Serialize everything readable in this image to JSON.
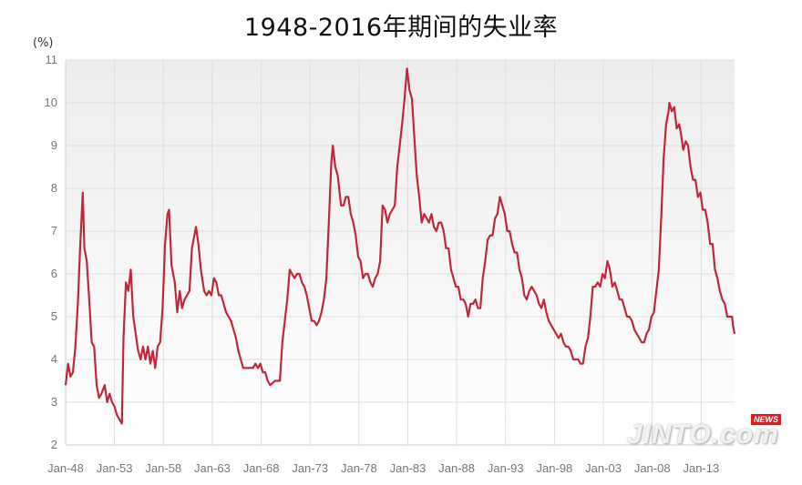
{
  "title": "1948-2016年期间的失业率",
  "unit": "(%)",
  "watermark": {
    "text": "JINTO.com",
    "badge": "NEWS"
  },
  "colors": {
    "line": "#c0283a",
    "grid": "#dedede",
    "plot_top": "#ececec",
    "plot_bottom": "#ffffff"
  },
  "chart_data": {
    "type": "line",
    "title": "1948-2016年期间的失业率",
    "ylabel": "(%)",
    "ylim": [
      2,
      11
    ],
    "yticks": [
      2,
      3,
      4,
      5,
      6,
      7,
      8,
      9,
      10,
      11
    ],
    "xlim": [
      "Jan-48",
      "Jun-16"
    ],
    "categories": [
      "Jan-48",
      "Jan-53",
      "Jan-58",
      "Jan-63",
      "Jan-68",
      "Jan-73",
      "Jan-78",
      "Jan-83",
      "Jan-88",
      "Jan-93",
      "Jan-98",
      "Jan-03",
      "Jan-08",
      "Jan-13"
    ],
    "grid": true,
    "legend": "none",
    "series": [
      {
        "points": [
          [
            "Jan-48",
            3.4
          ],
          [
            "Apr-48",
            3.9
          ],
          [
            "Jul-48",
            3.6
          ],
          [
            "Oct-48",
            3.7
          ],
          [
            "Jan-49",
            4.3
          ],
          [
            "Apr-49",
            5.3
          ],
          [
            "Jul-49",
            6.7
          ],
          [
            "Oct-49",
            7.9
          ],
          [
            "Dec-49",
            6.6
          ],
          [
            "Mar-50",
            6.3
          ],
          [
            "Jun-50",
            5.4
          ],
          [
            "Sep-50",
            4.4
          ],
          [
            "Dec-50",
            4.3
          ],
          [
            "Mar-51",
            3.4
          ],
          [
            "Jun-51",
            3.1
          ],
          [
            "Sep-51",
            3.2
          ],
          [
            "Jan-52",
            3.4
          ],
          [
            "Apr-52",
            3.0
          ],
          [
            "Jul-52",
            3.2
          ],
          [
            "Oct-52",
            3.0
          ],
          [
            "Jan-53",
            2.9
          ],
          [
            "Apr-53",
            2.7
          ],
          [
            "Jul-53",
            2.6
          ],
          [
            "Oct-53",
            2.5
          ],
          [
            "Dec-53",
            4.5
          ],
          [
            "Mar-54",
            5.8
          ],
          [
            "Jun-54",
            5.6
          ],
          [
            "Sep-54",
            6.1
          ],
          [
            "Dec-54",
            5.0
          ],
          [
            "Mar-55",
            4.6
          ],
          [
            "Jun-55",
            4.2
          ],
          [
            "Sep-55",
            4.0
          ],
          [
            "Dec-55",
            4.3
          ],
          [
            "Mar-56",
            4.0
          ],
          [
            "Jun-56",
            4.3
          ],
          [
            "Sep-56",
            3.9
          ],
          [
            "Dec-56",
            4.2
          ],
          [
            "Mar-57",
            3.8
          ],
          [
            "Jun-57",
            4.3
          ],
          [
            "Sep-57",
            4.4
          ],
          [
            "Dec-57",
            5.2
          ],
          [
            "Mar-58",
            6.7
          ],
          [
            "Jun-58",
            7.4
          ],
          [
            "Aug-58",
            7.5
          ],
          [
            "Nov-58",
            6.2
          ],
          [
            "Mar-59",
            5.8
          ],
          [
            "Jun-59",
            5.1
          ],
          [
            "Sep-59",
            5.6
          ],
          [
            "Dec-59",
            5.2
          ],
          [
            "Mar-60",
            5.4
          ],
          [
            "Jun-60",
            5.5
          ],
          [
            "Sep-60",
            5.6
          ],
          [
            "Dec-60",
            6.6
          ],
          [
            "Mar-61",
            6.9
          ],
          [
            "May-61",
            7.1
          ],
          [
            "Aug-61",
            6.7
          ],
          [
            "Nov-61",
            6.1
          ],
          [
            "Mar-62",
            5.6
          ],
          [
            "Jun-62",
            5.5
          ],
          [
            "Sep-62",
            5.6
          ],
          [
            "Dec-62",
            5.5
          ],
          [
            "Mar-63",
            5.9
          ],
          [
            "Jun-63",
            5.8
          ],
          [
            "Sep-63",
            5.5
          ],
          [
            "Dec-63",
            5.5
          ],
          [
            "Mar-64",
            5.3
          ],
          [
            "Jun-64",
            5.1
          ],
          [
            "Sep-64",
            5.0
          ],
          [
            "Dec-64",
            4.9
          ],
          [
            "Mar-65",
            4.7
          ],
          [
            "Jun-65",
            4.5
          ],
          [
            "Sep-65",
            4.2
          ],
          [
            "Dec-65",
            4.0
          ],
          [
            "Mar-66",
            3.8
          ],
          [
            "Jun-66",
            3.8
          ],
          [
            "Sep-66",
            3.8
          ],
          [
            "Dec-66",
            3.8
          ],
          [
            "Mar-67",
            3.8
          ],
          [
            "Jun-67",
            3.9
          ],
          [
            "Sep-67",
            3.8
          ],
          [
            "Dec-67",
            3.9
          ],
          [
            "Mar-68",
            3.7
          ],
          [
            "Jun-68",
            3.7
          ],
          [
            "Sep-68",
            3.5
          ],
          [
            "Dec-68",
            3.4
          ],
          [
            "Jun-69",
            3.5
          ],
          [
            "Dec-69",
            3.5
          ],
          [
            "Mar-70",
            4.4
          ],
          [
            "Jun-70",
            4.9
          ],
          [
            "Sep-70",
            5.4
          ],
          [
            "Dec-70",
            6.1
          ],
          [
            "Mar-71",
            6.0
          ],
          [
            "Jun-71",
            5.9
          ],
          [
            "Sep-71",
            6.0
          ],
          [
            "Dec-71",
            6.0
          ],
          [
            "Mar-72",
            5.8
          ],
          [
            "Jun-72",
            5.7
          ],
          [
            "Sep-72",
            5.5
          ],
          [
            "Dec-72",
            5.2
          ],
          [
            "Mar-73",
            4.9
          ],
          [
            "Jun-73",
            4.9
          ],
          [
            "Sep-73",
            4.8
          ],
          [
            "Dec-73",
            4.9
          ],
          [
            "Mar-74",
            5.1
          ],
          [
            "Jun-74",
            5.4
          ],
          [
            "Sep-74",
            5.9
          ],
          [
            "Dec-74",
            7.2
          ],
          [
            "Mar-75",
            8.6
          ],
          [
            "May-75",
            9.0
          ],
          [
            "Aug-75",
            8.5
          ],
          [
            "Nov-75",
            8.3
          ],
          [
            "Mar-76",
            7.6
          ],
          [
            "Jun-76",
            7.6
          ],
          [
            "Sep-76",
            7.8
          ],
          [
            "Dec-76",
            7.8
          ],
          [
            "Mar-77",
            7.4
          ],
          [
            "Jun-77",
            7.2
          ],
          [
            "Sep-77",
            6.9
          ],
          [
            "Dec-77",
            6.4
          ],
          [
            "Mar-78",
            6.3
          ],
          [
            "Jun-78",
            5.9
          ],
          [
            "Sep-78",
            6.0
          ],
          [
            "Dec-78",
            6.0
          ],
          [
            "Mar-79",
            5.8
          ],
          [
            "Jun-79",
            5.7
          ],
          [
            "Sep-79",
            5.9
          ],
          [
            "Dec-79",
            6.0
          ],
          [
            "Mar-80",
            6.3
          ],
          [
            "Jun-80",
            7.6
          ],
          [
            "Sep-80",
            7.5
          ],
          [
            "Dec-80",
            7.2
          ],
          [
            "Mar-81",
            7.4
          ],
          [
            "Jun-81",
            7.5
          ],
          [
            "Sep-81",
            7.6
          ],
          [
            "Dec-81",
            8.5
          ],
          [
            "Mar-82",
            9.0
          ],
          [
            "Jun-82",
            9.5
          ],
          [
            "Sep-82",
            10.1
          ],
          [
            "Dec-82",
            10.8
          ],
          [
            "Mar-83",
            10.3
          ],
          [
            "Jun-83",
            10.1
          ],
          [
            "Sep-83",
            9.2
          ],
          [
            "Dec-83",
            8.3
          ],
          [
            "Mar-84",
            7.8
          ],
          [
            "Jun-84",
            7.2
          ],
          [
            "Sep-84",
            7.4
          ],
          [
            "Dec-84",
            7.3
          ],
          [
            "Mar-85",
            7.2
          ],
          [
            "Jun-85",
            7.4
          ],
          [
            "Sep-85",
            7.1
          ],
          [
            "Dec-85",
            7.0
          ],
          [
            "Mar-86",
            7.2
          ],
          [
            "Jun-86",
            7.2
          ],
          [
            "Sep-86",
            7.0
          ],
          [
            "Dec-86",
            6.6
          ],
          [
            "Mar-87",
            6.6
          ],
          [
            "Jun-87",
            6.1
          ],
          [
            "Sep-87",
            5.9
          ],
          [
            "Dec-87",
            5.7
          ],
          [
            "Mar-88",
            5.7
          ],
          [
            "Jun-88",
            5.4
          ],
          [
            "Sep-88",
            5.4
          ],
          [
            "Dec-88",
            5.3
          ],
          [
            "Mar-89",
            5.0
          ],
          [
            "Jun-89",
            5.3
          ],
          [
            "Sep-89",
            5.3
          ],
          [
            "Dec-89",
            5.4
          ],
          [
            "Mar-90",
            5.2
          ],
          [
            "Jun-90",
            5.2
          ],
          [
            "Sep-90",
            5.9
          ],
          [
            "Dec-90",
            6.3
          ],
          [
            "Mar-91",
            6.8
          ],
          [
            "Jun-91",
            6.9
          ],
          [
            "Sep-91",
            6.9
          ],
          [
            "Dec-91",
            7.3
          ],
          [
            "Mar-92",
            7.4
          ],
          [
            "Jun-92",
            7.8
          ],
          [
            "Sep-92",
            7.6
          ],
          [
            "Dec-92",
            7.4
          ],
          [
            "Mar-93",
            7.0
          ],
          [
            "Jun-93",
            7.0
          ],
          [
            "Sep-93",
            6.7
          ],
          [
            "Dec-93",
            6.5
          ],
          [
            "Mar-94",
            6.5
          ],
          [
            "Jun-94",
            6.1
          ],
          [
            "Sep-94",
            5.9
          ],
          [
            "Dec-94",
            5.5
          ],
          [
            "Mar-95",
            5.4
          ],
          [
            "Jun-95",
            5.6
          ],
          [
            "Sep-95",
            5.7
          ],
          [
            "Dec-95",
            5.6
          ],
          [
            "Mar-96",
            5.5
          ],
          [
            "Jun-96",
            5.3
          ],
          [
            "Sep-96",
            5.2
          ],
          [
            "Dec-96",
            5.4
          ],
          [
            "Mar-97",
            5.1
          ],
          [
            "Jun-97",
            4.9
          ],
          [
            "Sep-97",
            4.8
          ],
          [
            "Dec-97",
            4.7
          ],
          [
            "Mar-98",
            4.6
          ],
          [
            "Jun-98",
            4.5
          ],
          [
            "Sep-98",
            4.6
          ],
          [
            "Dec-98",
            4.4
          ],
          [
            "Mar-99",
            4.3
          ],
          [
            "Jun-99",
            4.3
          ],
          [
            "Sep-99",
            4.2
          ],
          [
            "Dec-99",
            4.0
          ],
          [
            "Mar-00",
            4.0
          ],
          [
            "Jun-00",
            4.0
          ],
          [
            "Sep-00",
            3.9
          ],
          [
            "Dec-00",
            3.9
          ],
          [
            "Mar-01",
            4.3
          ],
          [
            "Jun-01",
            4.5
          ],
          [
            "Sep-01",
            5.0
          ],
          [
            "Dec-01",
            5.7
          ],
          [
            "Mar-02",
            5.7
          ],
          [
            "Jun-02",
            5.8
          ],
          [
            "Sep-02",
            5.7
          ],
          [
            "Dec-02",
            6.0
          ],
          [
            "Mar-03",
            5.9
          ],
          [
            "Jun-03",
            6.3
          ],
          [
            "Sep-03",
            6.1
          ],
          [
            "Dec-03",
            5.7
          ],
          [
            "Mar-04",
            5.8
          ],
          [
            "Jun-04",
            5.6
          ],
          [
            "Sep-04",
            5.4
          ],
          [
            "Dec-04",
            5.4
          ],
          [
            "Mar-05",
            5.2
          ],
          [
            "Jun-05",
            5.0
          ],
          [
            "Sep-05",
            5.0
          ],
          [
            "Dec-05",
            4.9
          ],
          [
            "Mar-06",
            4.7
          ],
          [
            "Jun-06",
            4.6
          ],
          [
            "Sep-06",
            4.5
          ],
          [
            "Dec-06",
            4.4
          ],
          [
            "Mar-07",
            4.4
          ],
          [
            "Jun-07",
            4.6
          ],
          [
            "Sep-07",
            4.7
          ],
          [
            "Dec-07",
            5.0
          ],
          [
            "Mar-08",
            5.1
          ],
          [
            "Jun-08",
            5.6
          ],
          [
            "Sep-08",
            6.1
          ],
          [
            "Dec-08",
            7.3
          ],
          [
            "Mar-09",
            8.7
          ],
          [
            "Jun-09",
            9.5
          ],
          [
            "Sep-09",
            9.8
          ],
          [
            "Oct-09",
            10.0
          ],
          [
            "Jan-10",
            9.8
          ],
          [
            "Apr-10",
            9.9
          ],
          [
            "Jul-10",
            9.4
          ],
          [
            "Oct-10",
            9.5
          ],
          [
            "Dec-10",
            9.3
          ],
          [
            "Mar-11",
            8.9
          ],
          [
            "Jun-11",
            9.1
          ],
          [
            "Sep-11",
            9.0
          ],
          [
            "Dec-11",
            8.5
          ],
          [
            "Mar-12",
            8.2
          ],
          [
            "Jun-12",
            8.2
          ],
          [
            "Sep-12",
            7.8
          ],
          [
            "Dec-12",
            7.9
          ],
          [
            "Mar-13",
            7.5
          ],
          [
            "Jun-13",
            7.5
          ],
          [
            "Sep-13",
            7.2
          ],
          [
            "Dec-13",
            6.7
          ],
          [
            "Mar-14",
            6.7
          ],
          [
            "Jun-14",
            6.1
          ],
          [
            "Sep-14",
            5.9
          ],
          [
            "Dec-14",
            5.6
          ],
          [
            "Mar-15",
            5.4
          ],
          [
            "Jun-15",
            5.3
          ],
          [
            "Sep-15",
            5.0
          ],
          [
            "Dec-15",
            5.0
          ],
          [
            "Mar-16",
            5.0
          ],
          [
            "Apr-16",
            4.8
          ],
          [
            "May-16",
            4.7
          ],
          [
            "Jun-16",
            4.6
          ]
        ]
      }
    ]
  }
}
